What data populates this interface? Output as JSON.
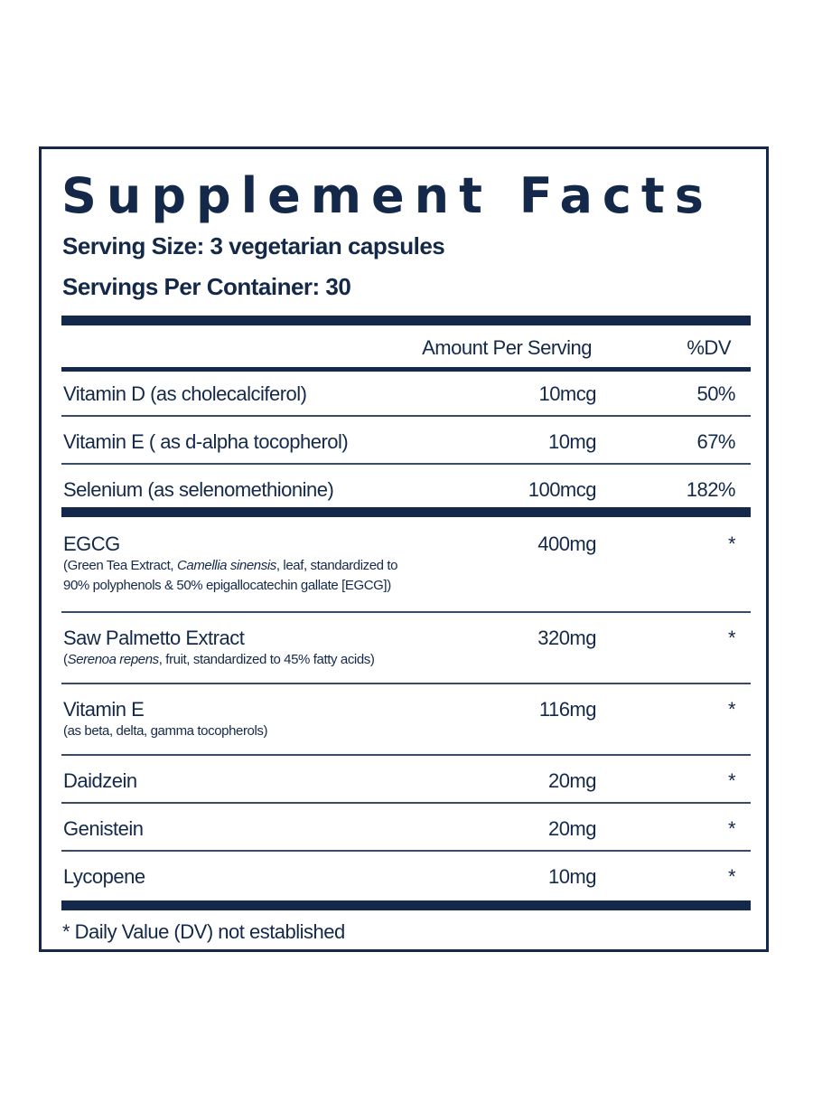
{
  "label": {
    "title": "Supplement Facts",
    "serving_size": "Serving Size: 3 vegetarian capsules",
    "servings_per_container": "Servings Per Container: 30",
    "header_amount": "Amount Per Serving",
    "header_dv": "%DV",
    "footnote": "* Daily Value (DV) not established"
  },
  "colors": {
    "ink": "#14294a",
    "background": "#ffffff"
  },
  "nutrients": [
    {
      "name": "Vitamin D (as cholecalciferol)",
      "amount": "10mcg",
      "dv": "50%"
    },
    {
      "name": "Vitamin E ( as d-alpha tocopherol)",
      "amount": "10mg",
      "dv": "67%"
    },
    {
      "name": "Selenium (as selenomethionine)",
      "amount": "100mcg",
      "dv": "182%"
    }
  ],
  "ingredients": [
    {
      "name": "EGCG",
      "desc_line1_pre": "(Green Tea Extract, ",
      "desc_line1_italic": "Camellia sinensis",
      "desc_line1_post": ", leaf, standardized to",
      "desc_line2": "90% polyphenols & 50% epigallocatechin gallate [EGCG])",
      "amount": "400mg",
      "dv": "*"
    },
    {
      "name": "Saw Palmetto Extract",
      "desc_line1_pre": "(",
      "desc_line1_italic": "Serenoa repens",
      "desc_line1_post": ", fruit, standardized to 45% fatty acids)",
      "amount": "320mg",
      "dv": "*"
    },
    {
      "name": "Vitamin E",
      "desc_line1": "(as beta, delta, gamma tocopherols)",
      "amount": "116mg",
      "dv": "*"
    },
    {
      "name": "Daidzein",
      "amount": "20mg",
      "dv": "*"
    },
    {
      "name": "Genistein",
      "amount": "20mg",
      "dv": "*"
    },
    {
      "name": "Lycopene",
      "amount": "10mg",
      "dv": "*"
    }
  ]
}
